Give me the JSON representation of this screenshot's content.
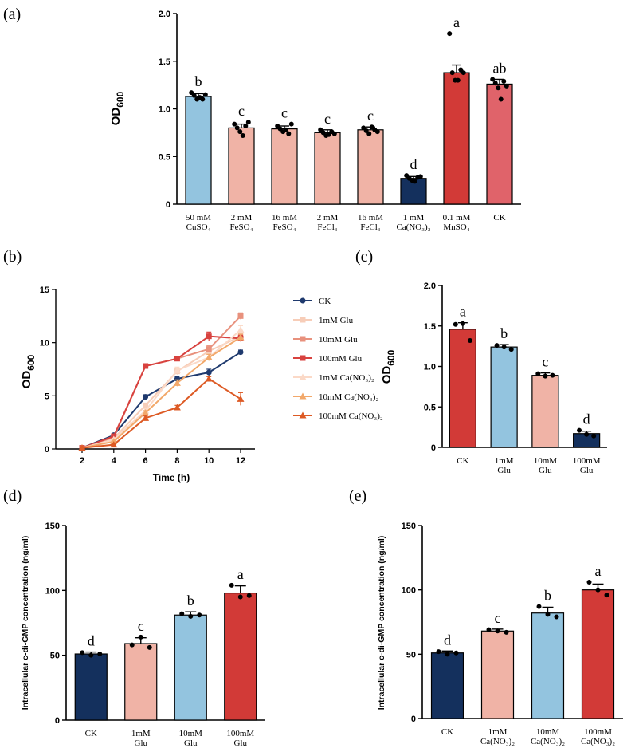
{
  "panels": {
    "a": "(a)",
    "b": "(b)",
    "c": "(c)",
    "d": "(d)",
    "e": "(e)"
  },
  "colors": {
    "blue_light": "#93c4df",
    "pink": "#f0b3a6",
    "navy": "#14305d",
    "red": "#d23a37",
    "ck_red": "#e0636a",
    "axis": "#000000"
  },
  "chart_data": [
    {
      "id": "a",
      "type": "bar",
      "ylabel_main": "OD",
      "ylabel_sub": "600",
      "ylim": [
        0,
        2.0
      ],
      "yticks": [
        "0",
        "0.5",
        "1.0",
        "1.5",
        "2.0"
      ],
      "ytick_values": [
        0,
        0.5,
        1.0,
        1.5,
        2.0
      ],
      "categories": [
        [
          "50 mM",
          "CuSO₄"
        ],
        [
          "2 mM",
          "FeSO₄"
        ],
        [
          "16 mM",
          "FeSO₄"
        ],
        [
          "2 mM",
          "FeCl₃"
        ],
        [
          "16 mM",
          "FeCl₃"
        ],
        [
          "1 mM",
          "Ca(NO₃)₂"
        ],
        [
          "0.1 mM",
          "MnSO₄"
        ],
        [
          "CK"
        ]
      ],
      "values": [
        1.13,
        0.8,
        0.79,
        0.75,
        0.78,
        0.27,
        1.38,
        1.26
      ],
      "errors": [
        0.03,
        0.04,
        0.03,
        0.03,
        0.03,
        0.02,
        0.08,
        0.05
      ],
      "points": [
        [
          1.17,
          1.14,
          1.1,
          1.12,
          1.1,
          1.15
        ],
        [
          0.84,
          0.8,
          0.76,
          0.72,
          0.82,
          0.86
        ],
        [
          0.82,
          0.79,
          0.76,
          0.78,
          0.74,
          0.84
        ],
        [
          0.78,
          0.75,
          0.72,
          0.73,
          0.76,
          0.74
        ],
        [
          0.8,
          0.77,
          0.74,
          0.81,
          0.78,
          0.76
        ],
        [
          0.3,
          0.27,
          0.25,
          0.24,
          0.28,
          0.29
        ],
        [
          1.79,
          1.38,
          1.3,
          1.3,
          1.41,
          1.38
        ],
        [
          1.31,
          1.27,
          1.22,
          1.1,
          1.29,
          1.24
        ]
      ],
      "letters": [
        "b",
        "c",
        "c",
        "c",
        "c",
        "d",
        "a",
        "ab"
      ],
      "bar_colors": [
        "#93c4df",
        "#f0b3a6",
        "#f0b3a6",
        "#f0b3a6",
        "#f0b3a6",
        "#14305d",
        "#d23a37",
        "#e0636a"
      ]
    },
    {
      "id": "b",
      "type": "line",
      "ylabel_main": "OD",
      "ylabel_sub": "600",
      "xlabel": "Time (h)",
      "x": [
        2,
        4,
        6,
        8,
        10,
        12
      ],
      "xticks": [
        "2",
        "4",
        "6",
        "8",
        "10",
        "12"
      ],
      "ylim": [
        0,
        15
      ],
      "yticks": [
        "0",
        "5",
        "10",
        "15"
      ],
      "ytick_values": [
        0,
        5,
        10,
        15
      ],
      "series": [
        {
          "name": "CK",
          "color": "#1f3a6e",
          "marker": "circle",
          "values": [
            0.1,
            1.3,
            4.9,
            6.6,
            7.2,
            9.1
          ],
          "errors": [
            0,
            0.1,
            0.2,
            0.2,
            0.3,
            0.2
          ]
        },
        {
          "name": "1mM Glu",
          "color": "#f7cdb8",
          "marker": "square",
          "values": [
            0.1,
            1.0,
            4.1,
            7.3,
            9.2,
            10.6
          ],
          "errors": [
            0,
            0.1,
            0.2,
            0.3,
            0.3,
            0.3
          ]
        },
        {
          "name": "10mM Glu",
          "color": "#e8917d",
          "marker": "square",
          "values": [
            0.1,
            1.1,
            7.8,
            8.5,
            9.4,
            12.5
          ],
          "errors": [
            0,
            0.1,
            0.2,
            0.2,
            0.3,
            0.3
          ]
        },
        {
          "name": "100mM Glu",
          "color": "#d8423f",
          "marker": "square",
          "values": [
            0.1,
            1.2,
            7.8,
            8.5,
            10.6,
            10.4
          ],
          "errors": [
            0,
            0.1,
            0.2,
            0.2,
            0.4,
            0.3
          ]
        },
        {
          "name": "1mM Ca(NO₃)₂",
          "color": "#fbd9c7",
          "marker": "triangle",
          "values": [
            0.1,
            0.9,
            3.6,
            7.4,
            8.6,
            11.2
          ],
          "errors": [
            0,
            0.1,
            0.2,
            0.3,
            0.3,
            0.4
          ]
        },
        {
          "name": "10mM Ca(NO₃)₂",
          "color": "#f2a86a",
          "marker": "triangle",
          "values": [
            0.1,
            0.7,
            3.4,
            6.2,
            8.6,
            10.5
          ],
          "errors": [
            0,
            0.1,
            0.2,
            0.3,
            0.3,
            0.3
          ]
        },
        {
          "name": "100mM Ca(NO₃)₂",
          "color": "#dd5a24",
          "marker": "triangle",
          "values": [
            0.1,
            0.4,
            2.9,
            3.9,
            6.6,
            4.7
          ],
          "errors": [
            0,
            0.1,
            0.2,
            0.2,
            0.2,
            0.6
          ]
        }
      ]
    },
    {
      "id": "c",
      "type": "bar",
      "ylabel_main": "OD",
      "ylabel_sub": "600",
      "ylim": [
        0,
        2.0
      ],
      "yticks": [
        "0",
        "0.5",
        "1.0",
        "1.5",
        "2.0"
      ],
      "ytick_values": [
        0,
        0.5,
        1.0,
        1.5,
        2.0
      ],
      "categories": [
        [
          "CK"
        ],
        [
          "1mM",
          "Glu"
        ],
        [
          "10mM",
          "Glu"
        ],
        [
          "100mM",
          "Glu"
        ]
      ],
      "values": [
        1.46,
        1.24,
        0.89,
        0.17
      ],
      "errors": [
        0.08,
        0.03,
        0.03,
        0.03
      ],
      "points": [
        [
          1.52,
          1.53,
          1.32
        ],
        [
          1.26,
          1.24,
          1.21
        ],
        [
          0.91,
          0.88,
          0.89
        ],
        [
          0.21,
          0.16,
          0.14
        ]
      ],
      "letters": [
        "a",
        "b",
        "c",
        "d"
      ],
      "bar_colors": [
        "#d23a37",
        "#93c4df",
        "#f0b3a6",
        "#14305d"
      ]
    },
    {
      "id": "d",
      "type": "bar",
      "ylabel_main": "Intracellular c-di-GMP concentration (ng/ml)",
      "ylabel_sub": "",
      "ylim": [
        0,
        150
      ],
      "yticks": [
        "0",
        "50",
        "100",
        "150"
      ],
      "ytick_values": [
        0,
        50,
        100,
        150
      ],
      "categories": [
        [
          "CK"
        ],
        [
          "1mM",
          "Glu"
        ],
        [
          "10mM",
          "Glu"
        ],
        [
          "100mM",
          "Glu"
        ]
      ],
      "values": [
        51,
        59,
        81,
        98
      ],
      "errors": [
        1.5,
        4.5,
        2.5,
        5.5
      ],
      "points": [
        [
          52,
          50,
          51
        ],
        [
          58,
          64,
          56
        ],
        [
          82,
          80,
          81
        ],
        [
          104,
          95,
          96
        ]
      ],
      "letters": [
        "d",
        "c",
        "b",
        "a"
      ],
      "bar_colors": [
        "#14305d",
        "#f0b3a6",
        "#93c4df",
        "#d23a37"
      ]
    },
    {
      "id": "e",
      "type": "bar",
      "ylabel_main": "Intracellular c-di-GMP concentration (ng/ml)",
      "ylabel_sub": "",
      "ylim": [
        0,
        150
      ],
      "yticks": [
        "0",
        "50",
        "100",
        "150"
      ],
      "ytick_values": [
        0,
        50,
        100,
        150
      ],
      "categories": [
        [
          "CK"
        ],
        [
          "1mM",
          "Ca(NO₃)₂"
        ],
        [
          "10mM",
          "Ca(NO₃)₂"
        ],
        [
          "100mM",
          "Ca(NO₃)₂"
        ]
      ],
      "values": [
        51,
        68,
        82,
        100
      ],
      "errors": [
        1.5,
        1.5,
        4.5,
        4.5
      ],
      "points": [
        [
          52,
          50,
          51
        ],
        [
          69,
          68,
          67
        ],
        [
          87,
          81,
          79
        ],
        [
          106,
          100,
          96
        ]
      ],
      "letters": [
        "d",
        "c",
        "b",
        "a"
      ],
      "bar_colors": [
        "#14305d",
        "#f0b3a6",
        "#93c4df",
        "#d23a37"
      ]
    }
  ]
}
